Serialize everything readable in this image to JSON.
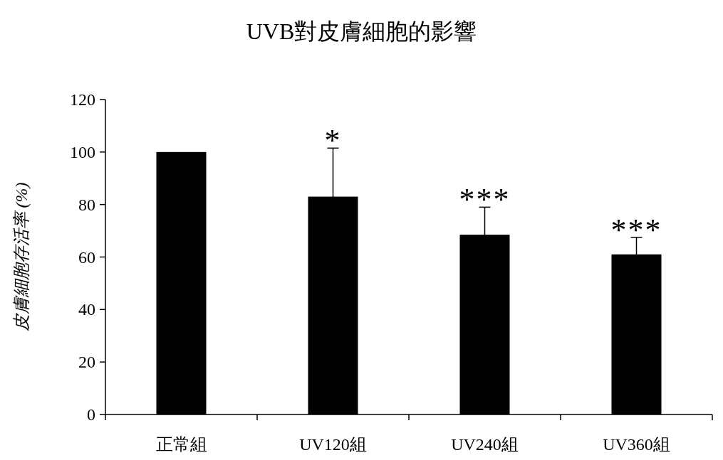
{
  "chart_data": {
    "type": "bar",
    "title": "UVB對皮膚細胞的影響",
    "ylabel": "皮膚細胞存活率 (%)",
    "categories": [
      "正常組",
      "UV120組",
      "UV240組",
      "UV360組"
    ],
    "series": [
      {
        "color": "#000000",
        "values": [
          100,
          83,
          68.5,
          61
        ],
        "errors": [
          null,
          18.5,
          10.5,
          6.5
        ]
      }
    ],
    "ylim": [
      0,
      120
    ],
    "yticks": [
      0,
      20,
      40,
      60,
      80,
      100,
      120
    ],
    "grid": false,
    "annotations": [
      {
        "text": "*",
        "x": "UV120組",
        "y": 101.5
      },
      {
        "text": "***",
        "x": "UV240組",
        "y": 79
      },
      {
        "text": "***",
        "x": "UV360組",
        "y": 67.5
      }
    ]
  }
}
